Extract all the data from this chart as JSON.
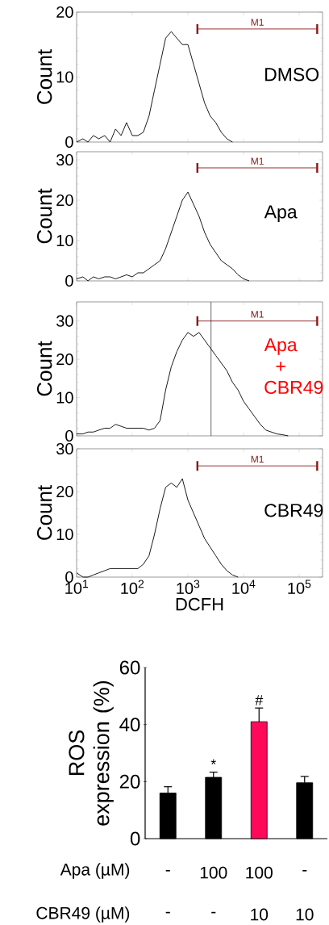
{
  "chart_data": [
    {
      "type": "line",
      "ylabel": "Count",
      "marker": "none",
      "log": "x",
      "xlim": [
        10,
        262144
      ],
      "xticks": [
        {
          "value": 10,
          "label": null
        },
        {
          "value": 100,
          "label": null
        },
        {
          "value": 1000,
          "label": null
        },
        {
          "value": 10000,
          "label": null
        },
        {
          "value": 100000,
          "label": null
        }
      ],
      "ylim": [
        0,
        20
      ],
      "yticks": [
        0,
        10,
        20
      ],
      "tick_labels": "y",
      "series": [
        {
          "color": "#000000",
          "x": [
            10,
            13,
            16,
            20,
            25,
            32,
            40,
            50,
            63,
            79,
            100,
            126,
            158,
            200,
            251,
            316,
            398,
            501,
            631,
            794,
            1000,
            1259,
            1585,
            1995,
            2512,
            3162,
            3981,
            5012,
            6310
          ],
          "values": [
            0,
            0.5,
            0,
            1,
            0.5,
            1,
            0,
            2,
            1,
            3,
            1,
            1,
            1.5,
            4,
            8,
            12,
            16,
            17,
            16,
            15,
            15,
            12,
            9,
            6,
            4,
            3,
            1.5,
            0.5,
            0
          ]
        },
        {
          "name": "M1",
          "color": "#8b1a1a",
          "x": [
            1480,
            210000
          ],
          "values": [
            17.4,
            17.4
          ]
        }
      ],
      "annotations": [
        "DMSO"
      ]
    },
    {
      "type": "line",
      "ylabel": "Count",
      "marker": "none",
      "log": "x",
      "xlim": [
        10,
        262144
      ],
      "xticks": [
        {
          "value": 10,
          "label": null
        },
        {
          "value": 100,
          "label": null
        },
        {
          "value": 1000,
          "label": null
        },
        {
          "value": 10000,
          "label": null
        },
        {
          "value": 100000,
          "label": null
        }
      ],
      "ylim": [
        0,
        32
      ],
      "yticks": [
        0,
        10,
        20,
        30
      ],
      "tick_labels": "y",
      "series": [
        {
          "color": "#000000",
          "x": [
            10,
            13,
            16,
            20,
            25,
            32,
            40,
            50,
            63,
            79,
            100,
            126,
            158,
            200,
            251,
            316,
            398,
            501,
            631,
            794,
            1000,
            1259,
            1585,
            1995,
            2512,
            3162,
            3981,
            5012,
            6310,
            7943,
            10000,
            12589
          ],
          "values": [
            0.5,
            1,
            0,
            1,
            0.5,
            1,
            1,
            0.5,
            1,
            1.5,
            1,
            2,
            2,
            3,
            4,
            5,
            8,
            12,
            16,
            20,
            22,
            19,
            16,
            12,
            9,
            7,
            5,
            4,
            3,
            1.5,
            0.5,
            0
          ]
        },
        {
          "name": "M1",
          "color": "#8b1a1a",
          "x": [
            1480,
            210000
          ],
          "values": [
            28,
            28
          ]
        }
      ],
      "annotations": [
        "Apa"
      ]
    },
    {
      "type": "line",
      "ylabel": "Count",
      "marker": "none",
      "log": "x",
      "xlim": [
        10,
        262144
      ],
      "xticks": [
        {
          "value": 10,
          "label": null
        },
        {
          "value": 100,
          "label": null
        },
        {
          "value": 1000,
          "label": null
        },
        {
          "value": 10000,
          "label": null
        },
        {
          "value": 100000,
          "label": null
        }
      ],
      "ylim": [
        0,
        35
      ],
      "yticks": [
        0,
        10,
        20,
        30
      ],
      "tick_labels": "y",
      "series": [
        {
          "color": "#000000",
          "x": [
            10,
            13,
            16,
            20,
            25,
            32,
            40,
            50,
            63,
            79,
            100,
            126,
            158,
            200,
            251,
            316,
            398,
            501,
            631,
            794,
            1000,
            1259,
            1585,
            1995,
            2512,
            3162,
            3981,
            5012,
            6310,
            7943,
            10000,
            12589,
            15849,
            19953,
            25119,
            31623,
            39811,
            50119,
            63096
          ],
          "values": [
            0.5,
            0.5,
            1,
            1,
            1.5,
            2,
            2,
            3,
            2.5,
            2,
            2,
            2,
            2,
            1.5,
            2,
            4,
            12,
            18,
            22,
            25,
            27,
            26,
            27,
            25,
            23,
            21,
            19,
            17,
            14,
            12,
            9,
            7,
            5,
            3,
            1.5,
            1,
            0.5,
            0.3,
            0
          ]
        },
        {
          "name": "M1",
          "color": "#8b1a1a",
          "x": [
            1480,
            210000
          ],
          "values": [
            30,
            30
          ]
        }
      ],
      "ref_lines": [
        {
          "axis": "x",
          "value": 2600,
          "color": "#000000"
        }
      ],
      "annotations": [
        "Apa + CBR49"
      ]
    },
    {
      "type": "line",
      "ylabel": "Count",
      "xlabel": "DCFH",
      "marker": "none",
      "log": "x",
      "xlim": [
        10,
        262144
      ],
      "xticks": [
        {
          "value": 10,
          "label": "10$^{1}$"
        },
        {
          "value": 100,
          "label": "10$^{2}$"
        },
        {
          "value": 1000,
          "label": "10$^{3}$"
        },
        {
          "value": 10000,
          "label": "10$^{4}$"
        },
        {
          "value": 100000,
          "label": "10$^{5}$"
        }
      ],
      "ylim": [
        0,
        30
      ],
      "yticks": [
        0,
        10,
        20,
        30
      ],
      "series": [
        {
          "color": "#000000",
          "x": [
            10,
            13,
            16,
            20,
            25,
            32,
            40,
            50,
            63,
            79,
            100,
            126,
            158,
            200,
            251,
            316,
            398,
            501,
            631,
            794,
            1000,
            1259,
            1585,
            1995,
            2512,
            3162,
            3981,
            5012,
            6310,
            7943
          ],
          "values": [
            1,
            0,
            0,
            0.5,
            1,
            1.5,
            2,
            2,
            2,
            2,
            2,
            2,
            3,
            5,
            10,
            16,
            21,
            22,
            21,
            23,
            18,
            15,
            12,
            9,
            7,
            5,
            3,
            1.5,
            0.5,
            0
          ]
        },
        {
          "name": "M1",
          "color": "#8b1a1a",
          "x": [
            1480,
            210000
          ],
          "values": [
            26,
            26
          ]
        }
      ],
      "annotations": [
        "CBR49"
      ]
    },
    {
      "type": "bar",
      "categories": [
        "-",
        "100",
        "100",
        "-"
      ],
      "xlabel": "Apa (µM)",
      "ylabel": "ROS expression (%)",
      "values": [
        16.0,
        21.5,
        41.0,
        19.6
      ],
      "colors": [
        "#000000",
        "#000000",
        "#ff0a5a",
        "#000000"
      ],
      "errors": [
        [
          16.0,
          18.2
        ],
        [
          21.5,
          23.3
        ],
        [
          41.0,
          45.8
        ],
        [
          19.6,
          21.8
        ]
      ],
      "value_labels": [
        null,
        "*",
        "#",
        null
      ],
      "ylim": [
        0,
        60
      ],
      "yticks": [
        0,
        20,
        40,
        60
      ],
      "annotations": [
        "CBR49 (µM)",
        "-",
        "-",
        "10",
        "10"
      ]
    }
  ]
}
